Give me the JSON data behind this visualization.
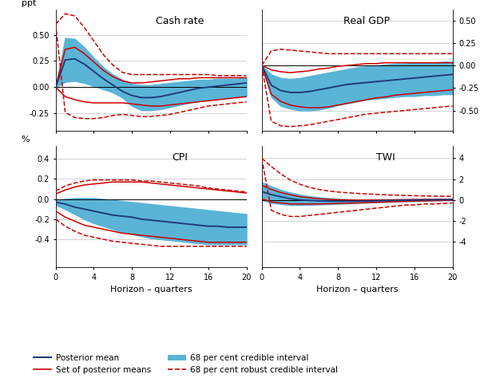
{
  "horizons": [
    0,
    1,
    2,
    3,
    4,
    5,
    6,
    7,
    8,
    9,
    10,
    11,
    12,
    13,
    14,
    15,
    16,
    17,
    18,
    19,
    20
  ],
  "cash_rate": {
    "title": "Cash rate",
    "ylabel_left": "ppt",
    "ylim": [
      -0.42,
      0.74
    ],
    "yticks": [
      -0.25,
      0.0,
      0.25,
      0.5
    ],
    "yticklabels": [
      "-0.25",
      "0.00",
      "0.25",
      "0.50"
    ],
    "posterior_mean": [
      0.0,
      0.26,
      0.27,
      0.22,
      0.15,
      0.08,
      0.02,
      -0.04,
      -0.08,
      -0.1,
      -0.1,
      -0.09,
      -0.07,
      -0.05,
      -0.03,
      -0.01,
      0.0,
      0.01,
      0.02,
      0.03,
      0.04
    ],
    "set_pm_upper": [
      0.0,
      0.36,
      0.38,
      0.32,
      0.24,
      0.16,
      0.1,
      0.06,
      0.04,
      0.04,
      0.05,
      0.06,
      0.07,
      0.08,
      0.08,
      0.09,
      0.09,
      0.09,
      0.09,
      0.09,
      0.09
    ],
    "set_pm_lower": [
      0.0,
      -0.09,
      -0.12,
      -0.14,
      -0.15,
      -0.15,
      -0.15,
      -0.15,
      -0.16,
      -0.17,
      -0.18,
      -0.18,
      -0.17,
      -0.16,
      -0.15,
      -0.14,
      -0.13,
      -0.12,
      -0.11,
      -0.1,
      -0.09
    ],
    "robust_upper": [
      0.6,
      0.7,
      0.68,
      0.57,
      0.44,
      0.31,
      0.21,
      0.14,
      0.12,
      0.12,
      0.12,
      0.12,
      0.12,
      0.12,
      0.12,
      0.12,
      0.12,
      0.11,
      0.11,
      0.11,
      0.11
    ],
    "robust_lower": [
      0.6,
      -0.24,
      -0.29,
      -0.3,
      -0.3,
      -0.29,
      -0.27,
      -0.26,
      -0.27,
      -0.28,
      -0.28,
      -0.27,
      -0.26,
      -0.24,
      -0.22,
      -0.2,
      -0.18,
      -0.17,
      -0.16,
      -0.15,
      -0.14
    ],
    "ci_upper": [
      0.0,
      0.47,
      0.46,
      0.38,
      0.28,
      0.19,
      0.12,
      0.07,
      0.03,
      0.02,
      0.02,
      0.03,
      0.04,
      0.05,
      0.06,
      0.07,
      0.07,
      0.08,
      0.08,
      0.08,
      0.09
    ],
    "ci_lower": [
      0.0,
      0.05,
      0.06,
      0.04,
      0.01,
      -0.02,
      -0.05,
      -0.1,
      -0.18,
      -0.22,
      -0.22,
      -0.21,
      -0.19,
      -0.17,
      -0.15,
      -0.13,
      -0.12,
      -0.11,
      -0.1,
      -0.09,
      -0.08
    ]
  },
  "real_gdp": {
    "title": "Real GDP",
    "ylabel_right": "%",
    "ylim": [
      -0.73,
      0.62
    ],
    "yticks": [
      -0.5,
      -0.25,
      0.0,
      0.25,
      0.5
    ],
    "yticklabels": [
      "-0.50",
      "-0.25",
      "0.00",
      "0.25",
      "0.50"
    ],
    "posterior_mean": [
      0.0,
      -0.22,
      -0.28,
      -0.3,
      -0.3,
      -0.29,
      -0.27,
      -0.25,
      -0.23,
      -0.21,
      -0.2,
      -0.19,
      -0.18,
      -0.17,
      -0.16,
      -0.15,
      -0.14,
      -0.13,
      -0.12,
      -0.11,
      -0.1
    ],
    "set_pm_upper": [
      0.0,
      -0.05,
      -0.07,
      -0.08,
      -0.07,
      -0.06,
      -0.04,
      -0.03,
      -0.01,
      0.0,
      0.01,
      0.02,
      0.02,
      0.03,
      0.03,
      0.03,
      0.03,
      0.03,
      0.03,
      0.03,
      0.03
    ],
    "set_pm_lower": [
      0.0,
      -0.32,
      -0.4,
      -0.44,
      -0.46,
      -0.47,
      -0.47,
      -0.46,
      -0.44,
      -0.42,
      -0.4,
      -0.38,
      -0.36,
      -0.35,
      -0.33,
      -0.32,
      -0.31,
      -0.3,
      -0.29,
      -0.28,
      -0.27
    ],
    "robust_upper": [
      0.0,
      0.16,
      0.18,
      0.17,
      0.16,
      0.15,
      0.14,
      0.13,
      0.13,
      0.13,
      0.13,
      0.13,
      0.13,
      0.13,
      0.13,
      0.13,
      0.13,
      0.13,
      0.13,
      0.13,
      0.13
    ],
    "robust_lower": [
      0.0,
      -0.62,
      -0.67,
      -0.68,
      -0.67,
      -0.66,
      -0.64,
      -0.62,
      -0.6,
      -0.58,
      -0.56,
      -0.54,
      -0.53,
      -0.52,
      -0.51,
      -0.5,
      -0.49,
      -0.48,
      -0.47,
      -0.46,
      -0.45
    ],
    "ci_upper": [
      0.0,
      -0.1,
      -0.14,
      -0.15,
      -0.14,
      -0.12,
      -0.1,
      -0.08,
      -0.06,
      -0.04,
      -0.02,
      -0.01,
      0.0,
      0.01,
      0.02,
      0.02,
      0.03,
      0.03,
      0.03,
      0.04,
      0.04
    ],
    "ci_lower": [
      0.0,
      -0.35,
      -0.45,
      -0.48,
      -0.5,
      -0.5,
      -0.49,
      -0.47,
      -0.44,
      -0.42,
      -0.4,
      -0.38,
      -0.37,
      -0.36,
      -0.35,
      -0.34,
      -0.34,
      -0.33,
      -0.33,
      -0.32,
      -0.32
    ]
  },
  "cpi": {
    "title": "CPI",
    "ylabel_left": "%",
    "ylim": [
      -0.68,
      0.53
    ],
    "yticks": [
      -0.4,
      -0.2,
      0.0,
      0.2,
      0.4
    ],
    "yticklabels": [
      "-0.4",
      "-0.2",
      "0.0",
      "0.2",
      "0.4"
    ],
    "posterior_mean": [
      -0.03,
      -0.05,
      -0.08,
      -0.1,
      -0.12,
      -0.14,
      -0.16,
      -0.17,
      -0.18,
      -0.2,
      -0.21,
      -0.22,
      -0.23,
      -0.24,
      -0.25,
      -0.26,
      -0.27,
      -0.27,
      -0.28,
      -0.28,
      -0.28
    ],
    "set_pm_upper": [
      0.05,
      0.09,
      0.12,
      0.14,
      0.15,
      0.16,
      0.17,
      0.17,
      0.17,
      0.17,
      0.16,
      0.15,
      0.14,
      0.13,
      0.12,
      0.11,
      0.1,
      0.09,
      0.08,
      0.07,
      0.06
    ],
    "set_pm_lower": [
      -0.12,
      -0.18,
      -0.22,
      -0.26,
      -0.28,
      -0.3,
      -0.32,
      -0.34,
      -0.35,
      -0.36,
      -0.37,
      -0.38,
      -0.39,
      -0.4,
      -0.41,
      -0.42,
      -0.43,
      -0.43,
      -0.43,
      -0.43,
      -0.43
    ],
    "robust_upper": [
      0.08,
      0.13,
      0.16,
      0.18,
      0.19,
      0.19,
      0.19,
      0.19,
      0.19,
      0.18,
      0.18,
      0.17,
      0.16,
      0.15,
      0.14,
      0.13,
      0.11,
      0.1,
      0.09,
      0.08,
      0.07
    ],
    "robust_lower": [
      -0.2,
      -0.27,
      -0.32,
      -0.36,
      -0.38,
      -0.4,
      -0.42,
      -0.43,
      -0.44,
      -0.45,
      -0.46,
      -0.47,
      -0.47,
      -0.47,
      -0.47,
      -0.47,
      -0.47,
      -0.47,
      -0.47,
      -0.47,
      -0.47
    ],
    "ci_upper": [
      -0.01,
      0.0,
      0.01,
      0.01,
      0.01,
      0.0,
      -0.01,
      -0.02,
      -0.03,
      -0.04,
      -0.05,
      -0.06,
      -0.07,
      -0.08,
      -0.09,
      -0.1,
      -0.11,
      -0.12,
      -0.13,
      -0.14,
      -0.15
    ],
    "ci_lower": [
      -0.06,
      -0.1,
      -0.15,
      -0.2,
      -0.24,
      -0.27,
      -0.3,
      -0.33,
      -0.35,
      -0.37,
      -0.39,
      -0.4,
      -0.41,
      -0.42,
      -0.43,
      -0.44,
      -0.45,
      -0.45,
      -0.45,
      -0.45,
      -0.45
    ]
  },
  "twi": {
    "title": "TWI",
    "ylabel_right": "%",
    "ylim": [
      -6.5,
      5.2
    ],
    "yticks": [
      -4,
      -2,
      0,
      2,
      4
    ],
    "yticklabels": [
      "-4",
      "-2",
      "0",
      "2",
      "4"
    ],
    "posterior_mean": [
      0.8,
      0.5,
      0.3,
      0.1,
      0.0,
      -0.05,
      -0.1,
      -0.12,
      -0.13,
      -0.13,
      -0.12,
      -0.11,
      -0.09,
      -0.07,
      -0.05,
      -0.03,
      -0.01,
      0.0,
      0.01,
      0.02,
      0.02
    ],
    "set_pm_upper": [
      1.4,
      1.0,
      0.7,
      0.5,
      0.3,
      0.2,
      0.1,
      0.05,
      0.01,
      -0.01,
      -0.02,
      -0.02,
      -0.01,
      0.0,
      0.01,
      0.02,
      0.03,
      0.04,
      0.04,
      0.05,
      0.05
    ],
    "set_pm_lower": [
      0.1,
      -0.2,
      -0.3,
      -0.4,
      -0.4,
      -0.4,
      -0.4,
      -0.38,
      -0.35,
      -0.33,
      -0.3,
      -0.27,
      -0.24,
      -0.21,
      -0.18,
      -0.15,
      -0.12,
      -0.1,
      -0.08,
      -0.06,
      -0.05
    ],
    "robust_upper": [
      4.0,
      3.2,
      2.5,
      1.9,
      1.5,
      1.2,
      1.0,
      0.85,
      0.75,
      0.68,
      0.62,
      0.57,
      0.52,
      0.48,
      0.45,
      0.42,
      0.4,
      0.38,
      0.36,
      0.35,
      0.34
    ],
    "robust_lower": [
      4.0,
      -1.0,
      -1.4,
      -1.6,
      -1.6,
      -1.5,
      -1.4,
      -1.3,
      -1.2,
      -1.1,
      -1.0,
      -0.9,
      -0.8,
      -0.7,
      -0.6,
      -0.5,
      -0.5,
      -0.4,
      -0.4,
      -0.35,
      -0.3
    ],
    "ci_upper": [
      1.7,
      1.3,
      0.95,
      0.7,
      0.5,
      0.35,
      0.25,
      0.16,
      0.1,
      0.05,
      0.02,
      0.0,
      -0.01,
      -0.01,
      0.0,
      0.0,
      0.01,
      0.01,
      0.02,
      0.02,
      0.02
    ],
    "ci_lower": [
      0.0,
      -0.3,
      -0.4,
      -0.5,
      -0.5,
      -0.48,
      -0.45,
      -0.42,
      -0.38,
      -0.34,
      -0.3,
      -0.27,
      -0.23,
      -0.2,
      -0.17,
      -0.14,
      -0.11,
      -0.09,
      -0.07,
      -0.05,
      -0.04
    ]
  },
  "colors": {
    "posterior_mean": "#1f3d7a",
    "set_pm": "#cc0000",
    "robust_band": "#cc0000",
    "ci_fill": "#5ab4d6",
    "zero_line": "#000000",
    "grid": "#c0c0c0"
  },
  "legend": {
    "posterior_mean": "Posterior mean",
    "set_pm": "Set of posterior means",
    "ci_fill": "68 per cent credible interval",
    "robust": "68 per cent robust credible interval"
  }
}
